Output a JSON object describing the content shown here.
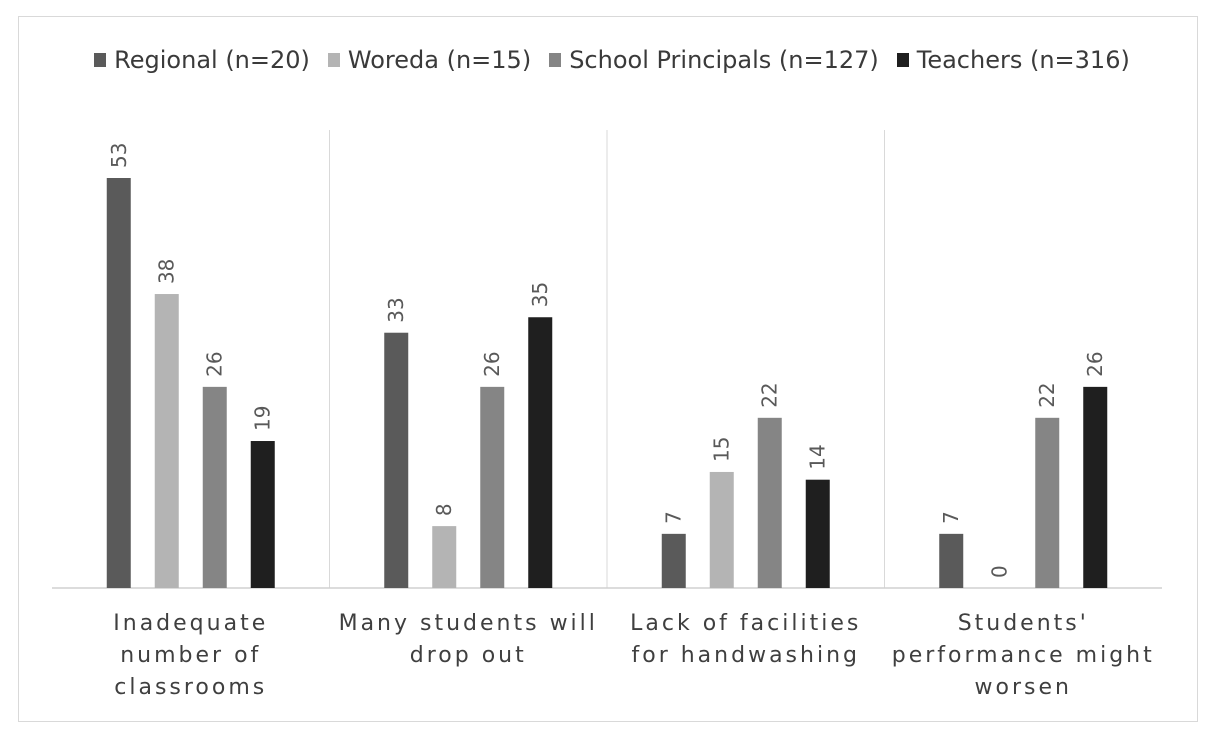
{
  "chart_data": {
    "type": "bar",
    "title": "",
    "xlabel": "",
    "ylabel": "",
    "ylim": [
      0,
      60
    ],
    "grid": false,
    "legend_position": "top",
    "categories": [
      [
        "Inadequate",
        "number of",
        "classrooms"
      ],
      [
        "Many students will",
        "drop out"
      ],
      [
        "Lack of facilities",
        "for handwashing"
      ],
      [
        "Students'",
        "performance might",
        "worsen"
      ]
    ],
    "series": [
      {
        "name": "Regional (n=20)",
        "color": "#5a5a5a",
        "values": [
          53,
          33,
          7,
          7
        ]
      },
      {
        "name": "Woreda (n=15)",
        "color": "#b4b4b4",
        "values": [
          38,
          8,
          15,
          0
        ]
      },
      {
        "name": "School Principals (n=127)",
        "color": "#858585",
        "values": [
          26,
          26,
          22,
          22
        ]
      },
      {
        "name": "Teachers (n=316)",
        "color": "#1f1f1f",
        "values": [
          19,
          35,
          14,
          26
        ]
      }
    ]
  }
}
